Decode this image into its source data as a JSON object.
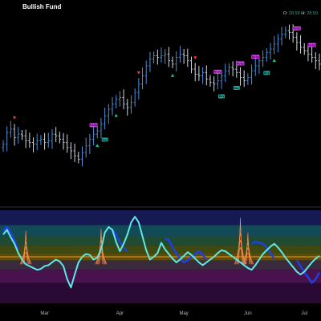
{
  "header": {
    "title": "Bullish Fund",
    "ohlc_label_o": "O:",
    "ohlc_value_o": "28.58",
    "ohlc_label_h": "H:",
    "ohlc_value_h": "28.59"
  },
  "colors": {
    "background": "#000000",
    "bar_up": "#4c8fd6",
    "bar_down": "#cfd6df",
    "buy_signal": "#26c281",
    "sell_signal": "#e53935",
    "buy_label": "#26a69a",
    "sell_label": "#e040fb",
    "osc_primary": "#5ee8e8",
    "osc_secondary": "#1e40e6",
    "midline": "#ff9800",
    "spike": "#ff8a50"
  },
  "chart_data": [
    {
      "type": "ohlc",
      "title": "Bullish Fund",
      "x_tick_labels": [
        "Mar",
        "Apr",
        "May",
        "Jun",
        "Jul"
      ],
      "closes": [
        21.2,
        21.9,
        22.1,
        21.6,
        21.8,
        21.7,
        21.4,
        21.3,
        21.2,
        21.4,
        21.5,
        21.3,
        21.4,
        21.8,
        21.7,
        21.5,
        21.3,
        21.0,
        20.8,
        20.5,
        20.3,
        20.7,
        21.1,
        21.5,
        21.8,
        22.0,
        22.4,
        22.9,
        23.3,
        23.6,
        23.9,
        24.0,
        23.6,
        23.4,
        23.7,
        24.3,
        24.8,
        25.3,
        25.9,
        26.3,
        26.5,
        26.4,
        26.5,
        26.6,
        26.2,
        26.0,
        26.4,
        26.6,
        26.5,
        26.2,
        25.7,
        25.4,
        25.3,
        25.5,
        25.1,
        24.9,
        24.8,
        25.0,
        25.3,
        25.6,
        25.8,
        25.7,
        25.5,
        25.2,
        25.0,
        25.2,
        25.6,
        25.9,
        26.2,
        26.4,
        26.7,
        26.9,
        27.2,
        27.5,
        27.8,
        28.0,
        27.9,
        27.6,
        27.3,
        27.0,
        26.8,
        26.6,
        26.4,
        26.2,
        26.0
      ],
      "buy_signals": [
        {
          "index": 25
        },
        {
          "index": 30
        },
        {
          "index": 45
        },
        {
          "index": 72
        }
      ],
      "sell_signals": [
        {
          "index": 3
        },
        {
          "index": 36
        },
        {
          "index": 51
        }
      ],
      "labels": [
        {
          "text": "Buy",
          "kind": "buy",
          "index": 27
        },
        {
          "text": "NoSp",
          "kind": "sell",
          "index": 24
        },
        {
          "text": "Buy",
          "kind": "buy",
          "index": 58
        },
        {
          "text": "NoSp",
          "kind": "sell",
          "index": 57
        },
        {
          "text": "Buy",
          "kind": "buy",
          "index": 62
        },
        {
          "text": "NoSp",
          "kind": "sell",
          "index": 63
        },
        {
          "text": "NoSp",
          "kind": "sell",
          "index": 67
        },
        {
          "text": "Buy",
          "kind": "buy",
          "index": 70
        },
        {
          "text": "NoSp",
          "kind": "sell",
          "index": 78
        },
        {
          "text": "NoSp",
          "kind": "sell",
          "index": 82
        }
      ]
    },
    {
      "type": "oscillator",
      "ylim": [
        0,
        100
      ],
      "midline": 50,
      "primary": [
        74,
        79,
        71,
        64,
        54,
        47,
        42,
        40,
        38,
        36,
        37,
        40,
        41,
        44,
        47,
        45,
        40,
        26,
        17,
        31,
        44,
        50,
        53,
        52,
        47,
        49,
        58,
        76,
        82,
        79,
        66,
        56,
        64,
        74,
        87,
        93,
        87,
        72,
        57,
        47,
        50,
        54,
        65,
        58,
        53,
        48,
        44,
        47,
        51,
        55,
        52,
        48,
        44,
        41,
        44,
        47,
        50,
        54,
        57,
        56,
        53,
        50,
        47,
        44,
        41,
        38,
        36,
        41,
        47,
        53,
        57,
        61,
        64,
        60,
        55,
        49,
        44,
        39,
        34,
        31,
        34,
        39,
        44,
        48,
        51
      ],
      "secondary_segments": [
        {
          "start": 0,
          "values": [
            78,
            82,
            76,
            68,
            58
          ]
        },
        {
          "start": 29,
          "values": [
            80,
            74,
            66,
            60,
            56
          ]
        },
        {
          "start": 43,
          "values": [
            70,
            68,
            60,
            54,
            48,
            44,
            46,
            50,
            53,
            56,
            52,
            47
          ]
        },
        {
          "start": 66,
          "values": [
            64,
            66,
            65,
            64,
            60,
            54,
            48
          ]
        },
        {
          "start": 78,
          "values": [
            46,
            40,
            33,
            28,
            22,
            26,
            33
          ]
        }
      ],
      "spikes": [
        {
          "index": 6,
          "height": 78
        },
        {
          "index": 26,
          "height": 80
        },
        {
          "index": 63,
          "height": 92
        },
        {
          "index": 65,
          "height": 76
        }
      ]
    }
  ]
}
